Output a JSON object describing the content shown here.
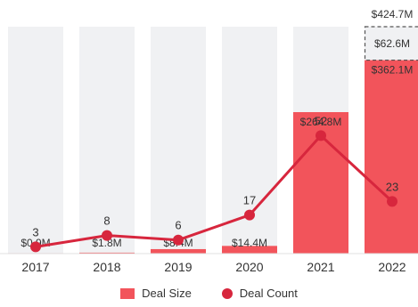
{
  "chart_data": {
    "type": "bar",
    "categories": [
      "2017",
      "2018",
      "2019",
      "2020",
      "2021",
      "2022"
    ],
    "series": [
      {
        "name": "Deal Size",
        "kind": "bar",
        "unit": "$M",
        "values": [
          0.9,
          1.8,
          8.4,
          14.4,
          264.8,
          362.1
        ],
        "labels": [
          "$0.9M",
          "$1.8M",
          "$8.4M",
          "$14.4M",
          "$264.8M",
          "$362.1M"
        ]
      },
      {
        "name": "Deal Count",
        "kind": "line",
        "values": [
          3,
          8,
          6,
          17,
          52,
          23
        ],
        "labels": [
          "3",
          "8",
          "6",
          "17",
          "52",
          "23"
        ]
      }
    ],
    "extra_segment": {
      "category": "2022",
      "value": 62.6,
      "label": "$62.6M",
      "total": 424.7,
      "total_label": "$424.7M"
    },
    "bar_ylim": [
      0,
      424.7
    ],
    "line_ylim": [
      0,
      100
    ],
    "grid": false,
    "legend": "bottom-center",
    "colors": {
      "bar": "#f2545b",
      "background_column": "#f0f1f3",
      "line": "#d7263d",
      "label_text": "#333333",
      "dashed_border": "#555555"
    }
  }
}
